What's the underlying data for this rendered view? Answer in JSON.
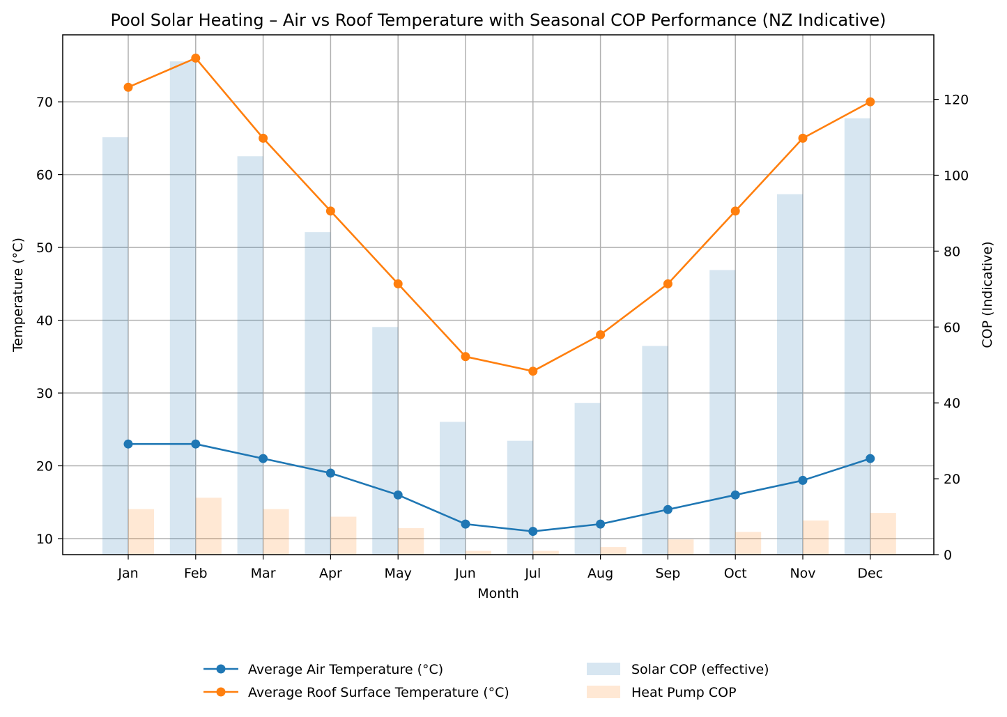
{
  "chart_data": {
    "type": "bar",
    "title": "Pool Solar Heating – Air vs Roof Temperature with Seasonal COP Performance (NZ Indicative)",
    "xlabel": "Month",
    "ylabel_left": "Temperature (°C)",
    "ylabel_right": "COP (Indicative)",
    "categories": [
      "Jan",
      "Feb",
      "Mar",
      "Apr",
      "May",
      "Jun",
      "Jul",
      "Aug",
      "Sep",
      "Oct",
      "Nov",
      "Dec"
    ],
    "ylim_left": [
      7.8,
      79.2
    ],
    "yticks_left": [
      10,
      20,
      30,
      40,
      50,
      60,
      70
    ],
    "ylim_right": [
      0,
      137
    ],
    "yticks_right": [
      0,
      20,
      40,
      60,
      80,
      100,
      120
    ],
    "grid": true,
    "legend_position": "bottom-center",
    "line_series": [
      {
        "name": "Average Air Temperature (°C)",
        "axis": "left",
        "color": "#1f77b4",
        "values": [
          23,
          23,
          21,
          19,
          16,
          12,
          11,
          12,
          14,
          16,
          18,
          21
        ]
      },
      {
        "name": "Average Roof Surface Temperature (°C)",
        "axis": "left",
        "color": "#ff7f0e",
        "values": [
          72,
          76,
          65,
          55,
          45,
          35,
          33,
          38,
          45,
          55,
          65,
          70
        ]
      }
    ],
    "bar_series": [
      {
        "name": "Solar COP (effective)",
        "axis": "right",
        "color": "#1f77b4",
        "opacity": 0.18,
        "values": [
          110,
          130,
          105,
          85,
          60,
          35,
          30,
          40,
          55,
          75,
          95,
          115
        ]
      },
      {
        "name": "Heat Pump COP",
        "axis": "right",
        "color": "#ff7f0e",
        "opacity": 0.18,
        "values": [
          12,
          15,
          12,
          10,
          7,
          1,
          1,
          2,
          4,
          6,
          9,
          11
        ]
      }
    ]
  }
}
